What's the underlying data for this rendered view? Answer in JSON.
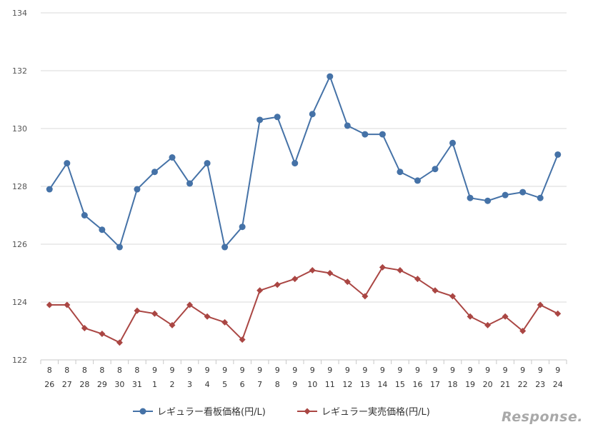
{
  "chart_data": {
    "type": "line",
    "categories": [
      [
        "8",
        "26"
      ],
      [
        "8",
        "27"
      ],
      [
        "8",
        "28"
      ],
      [
        "8",
        "29"
      ],
      [
        "8",
        "30"
      ],
      [
        "8",
        "31"
      ],
      [
        "9",
        "1"
      ],
      [
        "9",
        "2"
      ],
      [
        "9",
        "3"
      ],
      [
        "9",
        "4"
      ],
      [
        "9",
        "5"
      ],
      [
        "9",
        "6"
      ],
      [
        "9",
        "7"
      ],
      [
        "9",
        "8"
      ],
      [
        "9",
        "9"
      ],
      [
        "9",
        "10"
      ],
      [
        "9",
        "11"
      ],
      [
        "9",
        "12"
      ],
      [
        "9",
        "13"
      ],
      [
        "9",
        "14"
      ],
      [
        "9",
        "15"
      ],
      [
        "9",
        "16"
      ],
      [
        "9",
        "17"
      ],
      [
        "9",
        "18"
      ],
      [
        "9",
        "19"
      ],
      [
        "9",
        "20"
      ],
      [
        "9",
        "21"
      ],
      [
        "9",
        "22"
      ],
      [
        "9",
        "23"
      ],
      [
        "9",
        "24"
      ]
    ],
    "series": [
      {
        "name": "レギュラー看板価格(円/L)",
        "color": "#4572a7",
        "marker": "circle",
        "values": [
          127.9,
          128.8,
          127.0,
          126.5,
          125.9,
          127.9,
          128.5,
          129.0,
          128.1,
          128.8,
          125.9,
          126.6,
          130.3,
          130.4,
          128.8,
          130.5,
          131.8,
          130.1,
          129.8,
          129.8,
          128.5,
          128.2,
          128.6,
          129.5,
          127.6,
          127.5,
          127.7,
          127.8,
          127.6,
          129.1
        ]
      },
      {
        "name": "レギュラー実売価格(円/L)",
        "color": "#aa4643",
        "marker": "diamond",
        "values": [
          123.9,
          123.9,
          123.1,
          122.9,
          122.6,
          123.7,
          123.6,
          123.2,
          123.9,
          123.5,
          123.3,
          122.7,
          124.4,
          124.6,
          124.8,
          125.1,
          125.0,
          124.7,
          124.2,
          125.2,
          125.1,
          124.8,
          124.4,
          124.2,
          123.5,
          123.2,
          123.5,
          123.0,
          123.9,
          123.6
        ]
      }
    ],
    "ylim": [
      122,
      134
    ],
    "yticks": [
      "122",
      "124",
      "126",
      "128",
      "130",
      "132",
      "134"
    ],
    "grid": true,
    "legend_position": "bottom"
  },
  "watermark": "Response."
}
